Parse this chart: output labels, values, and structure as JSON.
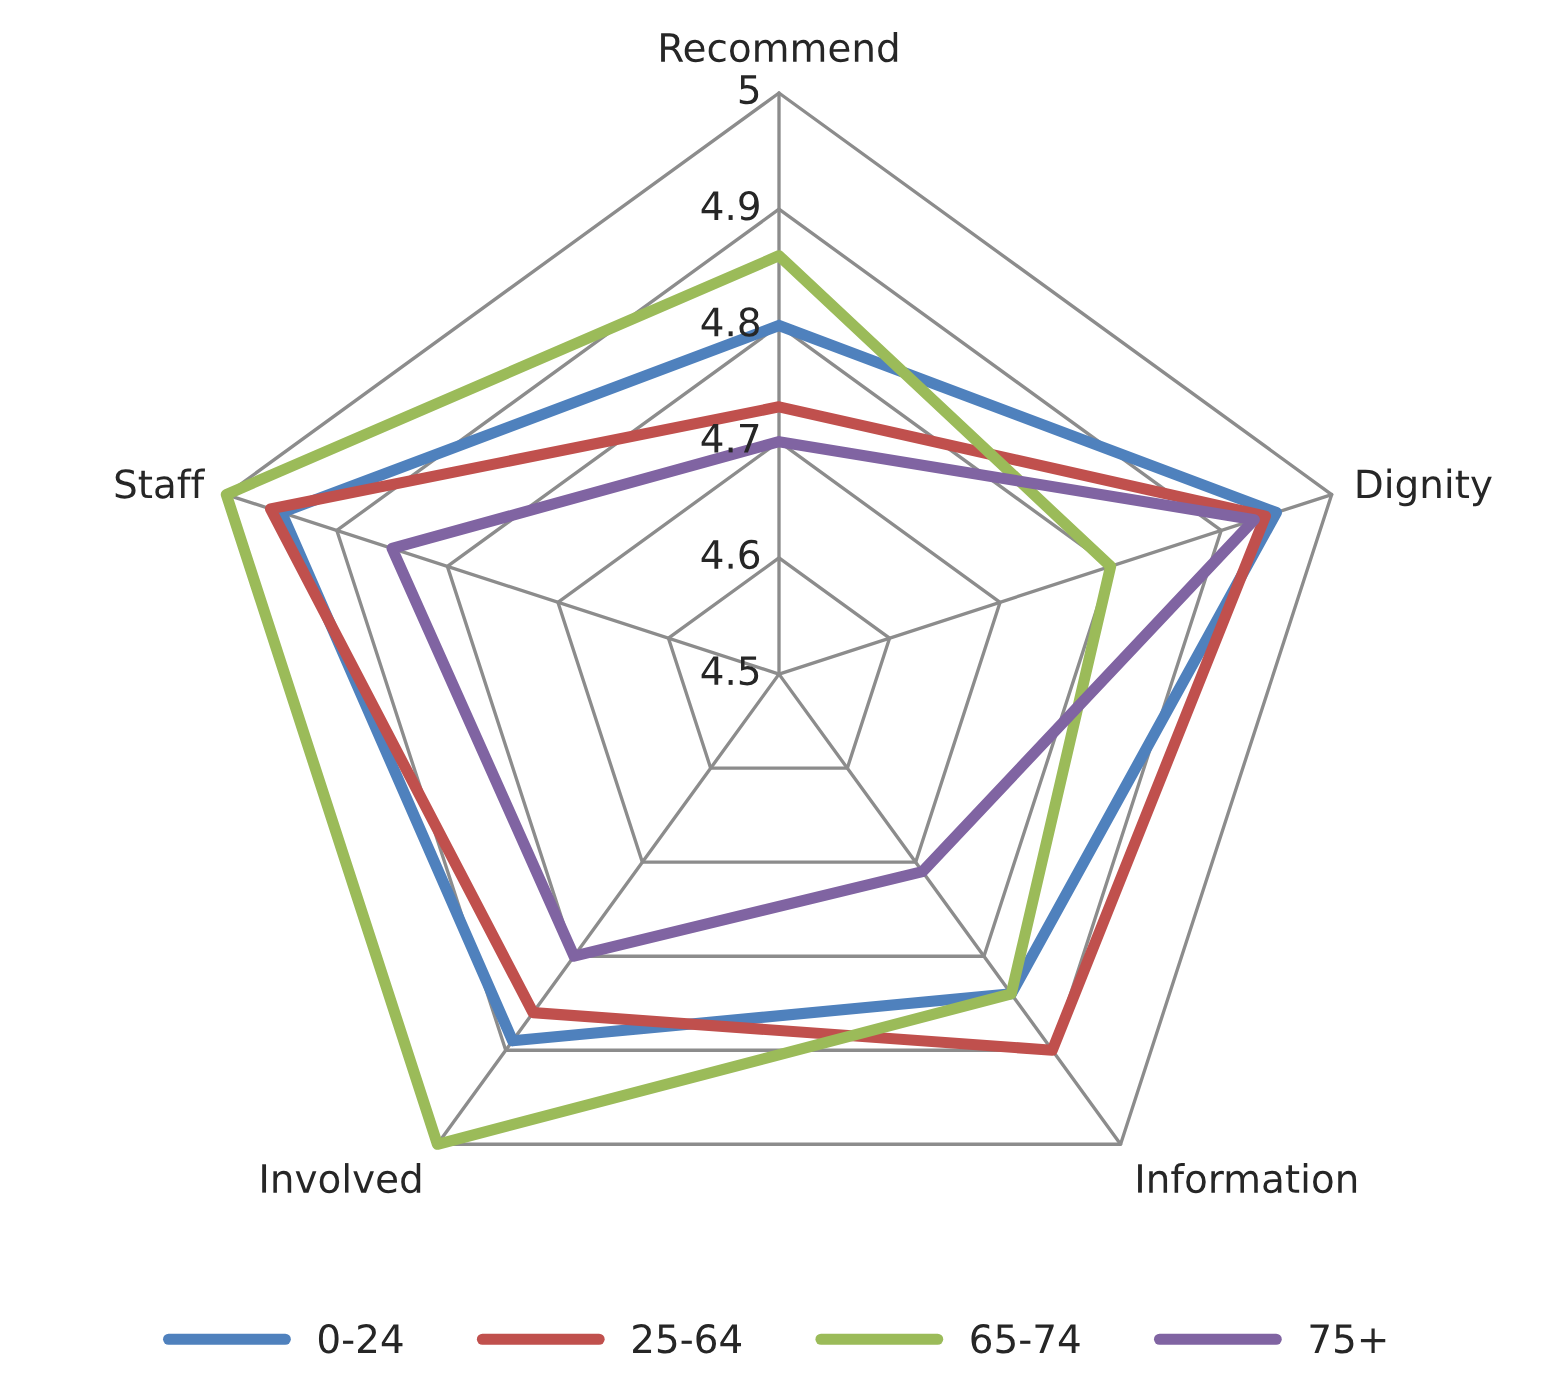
{
  "chart_data": {
    "type": "radar",
    "categories": [
      "Recommend",
      "Dignity",
      "Information",
      "Involved",
      "Staff"
    ],
    "ylim": [
      4.5,
      5
    ],
    "yticks": [
      4.5,
      4.6,
      4.7,
      4.8,
      4.9,
      5
    ],
    "grid": true,
    "legend": "bottom",
    "line_style": "solid",
    "marker": "none",
    "series": [
      {
        "name": "0-24",
        "color": "#4f81bd",
        "values": [
          4.8,
          4.95,
          4.84,
          4.89,
          4.95
        ]
      },
      {
        "name": "25-64",
        "color": "#c0504d",
        "values": [
          4.73,
          4.94,
          4.9,
          4.86,
          4.96
        ]
      },
      {
        "name": "65-74",
        "color": "#9bbb59",
        "values": [
          4.86,
          4.8,
          4.84,
          5,
          5
        ]
      },
      {
        "name": "75+",
        "color": "#8064a2",
        "values": [
          4.7,
          4.93,
          4.71,
          4.8,
          4.85
        ]
      }
    ]
  }
}
